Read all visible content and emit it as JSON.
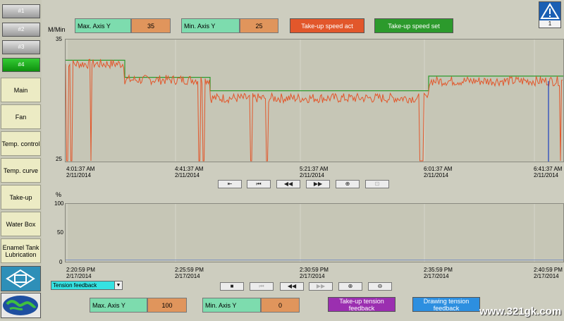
{
  "sidebar": {
    "selectors": [
      "#1",
      "#2",
      "#3",
      "#4"
    ],
    "active_selector": "#4",
    "nav_items": [
      "Main",
      "Fan",
      "Temp. control",
      "Temp. curve",
      "Take-up",
      "Water Box",
      "Enamel Tank Lubrication"
    ]
  },
  "top_chart": {
    "unit": "M/Min",
    "max_axis_label": "Max. Axis Y",
    "max_axis_value": "35",
    "min_axis_label": "Min. Axis Y",
    "min_axis_value": "25",
    "legend_act": "Take-up speed act",
    "legend_set": "Take-up speed set",
    "warning_badge": "1",
    "y_ticks": [
      "35",
      "25"
    ],
    "x_ticks": [
      {
        "time": "4:01:37 AM",
        "date": "2/11/2014"
      },
      {
        "time": "4:41:37 AM",
        "date": "2/11/2014"
      },
      {
        "time": "5:21:37 AM",
        "date": "2/11/2014"
      },
      {
        "time": "6:01:37 AM",
        "date": "2/11/2014"
      },
      {
        "time": "6:41:37 AM",
        "date": "2/11/2014"
      }
    ],
    "controls": [
      "⇤",
      "⏮",
      "◀◀",
      "▶▶",
      "⊕",
      "⊡"
    ]
  },
  "bottom_chart": {
    "unit": "%",
    "y_ticks": [
      "100",
      "50",
      "0"
    ],
    "x_ticks": [
      {
        "time": "2:20:59 PM",
        "date": "2/17/2014"
      },
      {
        "time": "2:25:59 PM",
        "date": "2/17/2014"
      },
      {
        "time": "2:30:59 PM",
        "date": "2/17/2014"
      },
      {
        "time": "2:35:59 PM",
        "date": "2/17/2014"
      },
      {
        "time": "2:40:59 PM",
        "date": "2/17/2014"
      }
    ],
    "series_select": "Tension feedback",
    "controls": [
      "■",
      "⏮",
      "◀◀",
      "▶▶",
      "⊕",
      "⊖"
    ],
    "max_axis_label": "Max. Axis Y",
    "max_axis_value": "100",
    "min_axis_label": "Min. Axis Y",
    "min_axis_value": "0",
    "legend_takeup": "Take-up tension feedback",
    "legend_drawing": "Drawing tension feedback"
  },
  "watermark": "www.321gk.com",
  "colors": {
    "act": "#e2572b",
    "set": "#2c9a2c",
    "takeup_tension": "#9b2fb0",
    "drawing_tension": "#2d8fe0"
  },
  "chart_data": [
    {
      "type": "line",
      "ylabel": "M/Min",
      "ylim": [
        25,
        35
      ],
      "x": [
        "4:01:37 AM",
        "4:41:37 AM",
        "5:21:37 AM",
        "6:01:37 AM",
        "6:41:37 AM"
      ],
      "series": [
        {
          "name": "Take-up speed set",
          "segments": [
            {
              "from": "4:01:37 AM",
              "to": "4:22 AM",
              "value": 33.3
            },
            {
              "from": "4:22 AM",
              "to": "4:52 AM",
              "value": 31.9
            },
            {
              "from": "4:52 AM",
              "to": "6:03 AM",
              "value": 30.8
            },
            {
              "from": "6:03 AM",
              "to": "6:41:37 AM",
              "value": 32.0
            }
          ]
        },
        {
          "name": "Take-up speed act",
          "segments": [
            {
              "from": "4:01:37 AM",
              "to": "4:22 AM",
              "value": 33.0
            },
            {
              "from": "4:22 AM",
              "to": "4:52 AM",
              "value": 31.7
            },
            {
              "from": "4:52 AM",
              "to": "6:03 AM",
              "value": 30.2
            },
            {
              "from": "6:03 AM",
              "to": "6:41:37 AM",
              "value": 31.6
            }
          ],
          "drops_to": 25
        }
      ]
    },
    {
      "type": "line",
      "ylabel": "%",
      "ylim": [
        0,
        100
      ],
      "x": [
        "2:20:59 PM",
        "2:25:59 PM",
        "2:30:59 PM",
        "2:35:59 PM",
        "2:40:59 PM"
      ],
      "series": [
        {
          "name": "Tension feedback",
          "values": [
            3,
            3,
            3,
            3,
            3
          ]
        }
      ]
    }
  ]
}
